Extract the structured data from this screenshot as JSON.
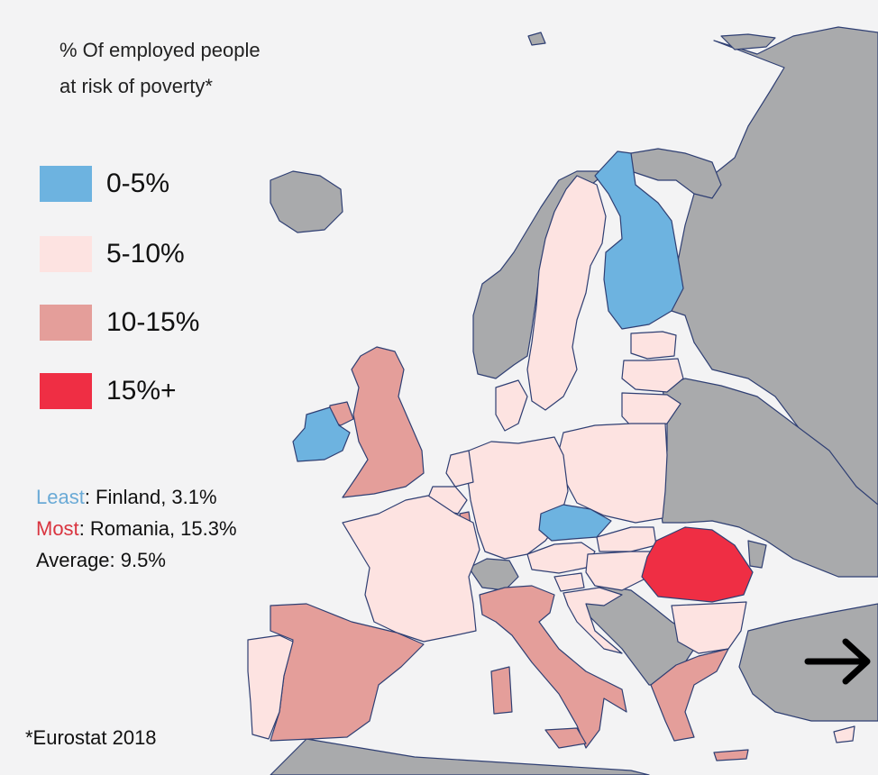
{
  "title": "% Of employed people\nat risk of poverty*",
  "legend": [
    {
      "label": "0-5%",
      "color": "#6db3e0"
    },
    {
      "label": "5-10%",
      "color": "#fde3e1"
    },
    {
      "label": "10-15%",
      "color": "#e49e9a"
    },
    {
      "label": "15%+",
      "color": "#ef2e44"
    }
  ],
  "no_data_color": "#a9aaac",
  "stats": {
    "least_label": "Least",
    "least_value": ": Finland, 3.1%",
    "most_label": "Most",
    "most_value": ": Romania, 15.3%",
    "average": "Average: 9.5%"
  },
  "source": "*Eurostat 2018",
  "icons": {
    "next": "arrow-right-icon"
  },
  "map_data": {
    "region": "Europe",
    "countries": [
      {
        "name": "Finland",
        "category": 0
      },
      {
        "name": "Ireland",
        "category": 0
      },
      {
        "name": "Czechia",
        "category": 0
      },
      {
        "name": "Sweden",
        "category": 1
      },
      {
        "name": "Estonia",
        "category": 1
      },
      {
        "name": "Latvia",
        "category": 1
      },
      {
        "name": "Lithuania",
        "category": 1
      },
      {
        "name": "Poland",
        "category": 1
      },
      {
        "name": "Germany",
        "category": 1
      },
      {
        "name": "Denmark",
        "category": 1
      },
      {
        "name": "Netherlands",
        "category": 1
      },
      {
        "name": "Belgium",
        "category": 1
      },
      {
        "name": "France",
        "category": 1
      },
      {
        "name": "Portugal",
        "category": 1
      },
      {
        "name": "Austria",
        "category": 1
      },
      {
        "name": "Slovakia",
        "category": 1
      },
      {
        "name": "Hungary",
        "category": 1
      },
      {
        "name": "Slovenia",
        "category": 1
      },
      {
        "name": "Croatia",
        "category": 1
      },
      {
        "name": "Bulgaria",
        "category": 1
      },
      {
        "name": "Cyprus",
        "category": 1
      },
      {
        "name": "United Kingdom",
        "category": 2
      },
      {
        "name": "Spain",
        "category": 2
      },
      {
        "name": "Italy",
        "category": 2
      },
      {
        "name": "Greece",
        "category": 2
      },
      {
        "name": "Luxembourg",
        "category": 2
      },
      {
        "name": "Northern Ireland",
        "category": 2
      },
      {
        "name": "Romania",
        "category": 3
      }
    ]
  }
}
